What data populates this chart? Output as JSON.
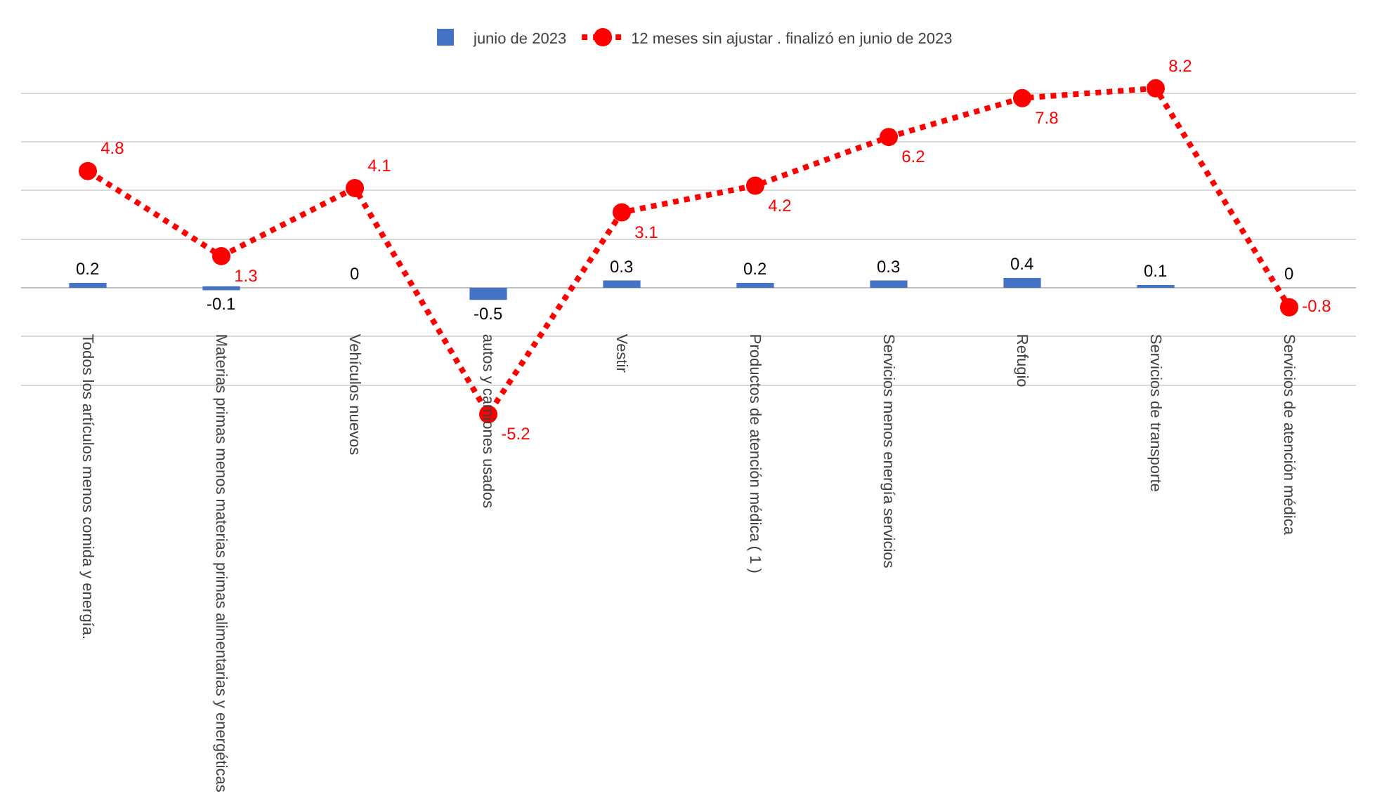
{
  "chart_data": {
    "type": "bar",
    "categories": [
      "Todos los artículos menos comida y energía.",
      "Materias primas menos materias primas alimentarias y energéticas",
      "Vehículos nuevos",
      "autos y camiones usados",
      "Vestir",
      "Productos de atención médica ( 1 )",
      "Servicios menos energía servicios",
      "Refugio",
      "Servicios de transporte",
      "Servicios de atención médica"
    ],
    "series": [
      {
        "name": "junio de 2023",
        "color": "#4472c4",
        "values": [
          0.2,
          -0.1,
          0,
          -0.5,
          0.3,
          0.2,
          0.3,
          0.4,
          0.1,
          0
        ]
      },
      {
        "name": "12 meses sin ajustar . finalizó en junio de 2023",
        "type": "line",
        "color": "#ff0000",
        "marker": "circle",
        "line_style": "dotted",
        "values": [
          4.8,
          1.3,
          4.1,
          -5.2,
          3.1,
          4.2,
          6.2,
          7.8,
          8.2,
          -0.8
        ]
      }
    ],
    "data_labels": true,
    "yticks": [
      {
        "value": -4,
        "label": null
      },
      {
        "value": -2,
        "label": null
      },
      {
        "value": 0,
        "label": null
      },
      {
        "value": 2,
        "label": null
      },
      {
        "value": 4,
        "label": null
      },
      {
        "value": 6,
        "label": null
      },
      {
        "value": 8,
        "label": null
      }
    ],
    "tick_labels": "x",
    "grid": "y",
    "legend": "top"
  }
}
